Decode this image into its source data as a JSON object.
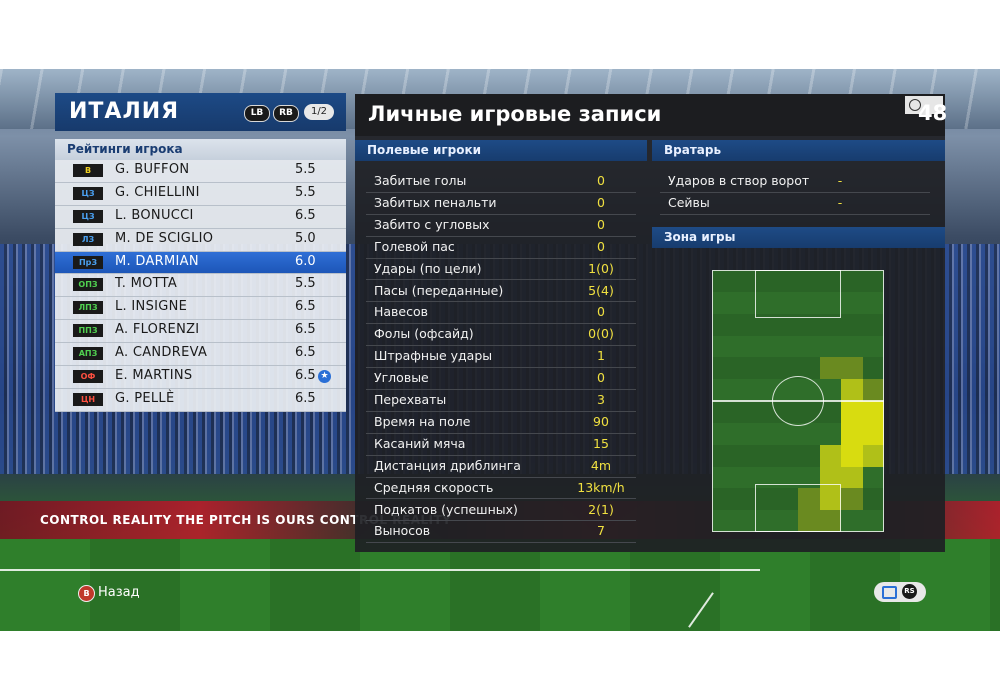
{
  "team": {
    "name": "ИТАЛИЯ",
    "lb": "LB",
    "rb": "RB",
    "page": "1/2"
  },
  "ratings_header": "Рейтинги игрока",
  "players": [
    {
      "pos": "В",
      "pos_color": "#f0d020",
      "name": "G. BUFFON",
      "rating": "5.5"
    },
    {
      "pos": "ЦЗ",
      "pos_color": "#4aa0f0",
      "name": "G. CHIELLINI",
      "rating": "5.5"
    },
    {
      "pos": "ЦЗ",
      "pos_color": "#4aa0f0",
      "name": "L. BONUCCI",
      "rating": "6.5"
    },
    {
      "pos": "ЛЗ",
      "pos_color": "#4aa0f0",
      "name": "M. DE SCIGLIO",
      "rating": "5.0"
    },
    {
      "pos": "ПрЗ",
      "pos_color": "#4aa0f0",
      "name": "M. DARMIAN",
      "rating": "6.0",
      "selected": true
    },
    {
      "pos": "ОПЗ",
      "pos_color": "#50d050",
      "name": "T. MOTTA",
      "rating": "5.5"
    },
    {
      "pos": "ЛПЗ",
      "pos_color": "#50d050",
      "name": "L. INSIGNE",
      "rating": "6.5"
    },
    {
      "pos": "ППЗ",
      "pos_color": "#50d050",
      "name": "A. FLORENZI",
      "rating": "6.5"
    },
    {
      "pos": "АПЗ",
      "pos_color": "#50d050",
      "name": "A. CANDREVA",
      "rating": "6.5"
    },
    {
      "pos": "ОФ",
      "pos_color": "#ff5040",
      "name": "E. MARTINS",
      "rating": "6.5",
      "star": true
    },
    {
      "pos": "ЦН",
      "pos_color": "#ff5040",
      "name": "G. PELLÈ",
      "rating": "6.5"
    }
  ],
  "records": {
    "title": "Личные игровые записи",
    "timer": "48",
    "field_header": "Полевые игроки",
    "field_stats": [
      {
        "label": "Забитые голы",
        "value": "0"
      },
      {
        "label": "Забитых пенальти",
        "value": "0"
      },
      {
        "label": "Забито с угловых",
        "value": "0"
      },
      {
        "label": "Голевой пас",
        "value": "0"
      },
      {
        "label": "Удары (по цели)",
        "value": "1(0)"
      },
      {
        "label": "Пасы (переданные)",
        "value": "5(4)"
      },
      {
        "label": "Навесов",
        "value": "0"
      },
      {
        "label": "Фолы (офсайд)",
        "value": "0(0)"
      },
      {
        "label": "Штрафные удары",
        "value": "1"
      },
      {
        "label": "Угловые",
        "value": "0"
      },
      {
        "label": "Перехваты",
        "value": "3"
      },
      {
        "label": "Время на поле",
        "value": "90"
      },
      {
        "label": "Касаний мяча",
        "value": "15"
      },
      {
        "label": "Дистанция дриблинга",
        "value": "4m"
      },
      {
        "label": "Средняя скорость",
        "value": "13km/h"
      },
      {
        "label": "Подкатов (успешных)",
        "value": "2(1)"
      },
      {
        "label": "Выносов",
        "value": "7"
      }
    ],
    "gk_header": "Вратарь",
    "gk_stats": [
      {
        "label": "Ударов в створ ворот",
        "value": "-"
      },
      {
        "label": "Сейвы",
        "value": "-"
      }
    ],
    "zone_header": "Зона игры"
  },
  "hints": {
    "back_button": "B",
    "back_label": "Назад",
    "rs_label": "RS"
  },
  "stadium_banner": "CONTROL REALITY    THE PITCH IS OURS    CONTROL REALITY",
  "colors": {
    "accent_blue": "#1d4a86",
    "stat_yellow": "#f0e040",
    "selected_row": "#2f6fd6"
  }
}
